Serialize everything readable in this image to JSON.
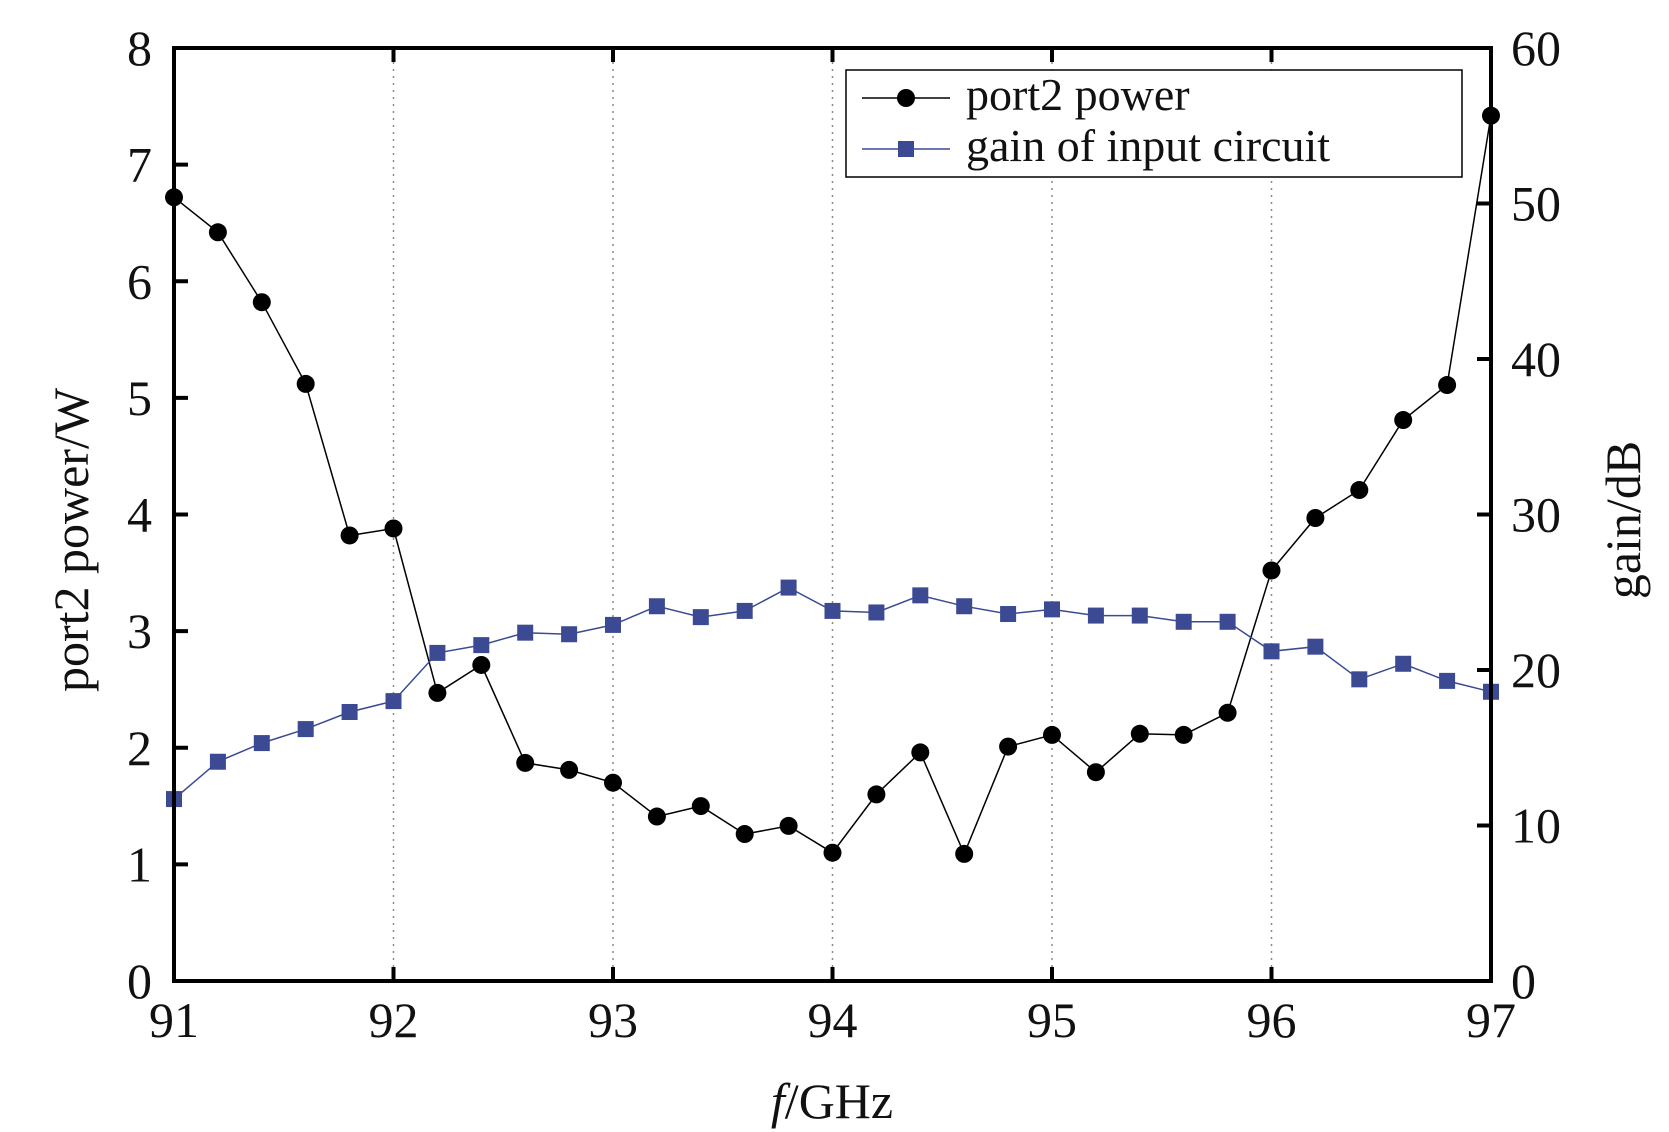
{
  "chart_data": {
    "type": "line",
    "xlabel_italic": "f",
    "xlabel_rest": "/GHz",
    "ylabel": "port2 power/W",
    "y2label": "gain/dB",
    "xlim": [
      91,
      97
    ],
    "ylim": [
      0,
      8
    ],
    "y2lim": [
      0,
      60
    ],
    "xticks": [
      91,
      92,
      93,
      94,
      95,
      96,
      97
    ],
    "yticks": [
      0,
      1,
      2,
      3,
      4,
      5,
      6,
      7,
      8
    ],
    "y2ticks": [
      0,
      10,
      20,
      30,
      40,
      50,
      60
    ],
    "grid": "vertical dotted",
    "legend_position": "top-right",
    "x": [
      91.0,
      91.2,
      91.4,
      91.6,
      91.8,
      92.0,
      92.2,
      92.4,
      92.6,
      92.8,
      93.0,
      93.2,
      93.4,
      93.6,
      93.8,
      94.0,
      94.2,
      94.4,
      94.6,
      94.8,
      95.0,
      95.2,
      95.4,
      95.6,
      95.8,
      96.0,
      96.2,
      96.4,
      96.6,
      96.8,
      97.0
    ],
    "series": [
      {
        "name": "port2 power",
        "axis": "left",
        "marker": "circle",
        "color": "#000000",
        "values": [
          6.72,
          6.42,
          5.82,
          5.12,
          3.82,
          3.88,
          2.47,
          2.71,
          1.87,
          1.81,
          1.7,
          1.41,
          1.5,
          1.26,
          1.33,
          1.1,
          1.6,
          1.96,
          1.09,
          2.01,
          2.11,
          1.79,
          2.12,
          2.11,
          2.3,
          3.52,
          3.97,
          4.21,
          4.81,
          5.11,
          7.42
        ]
      },
      {
        "name": "gain of input circuit",
        "axis": "right",
        "marker": "square",
        "color": "#3b4a93",
        "values": [
          11.7,
          14.1,
          15.3,
          16.2,
          17.3,
          18.0,
          21.1,
          21.6,
          22.4,
          22.3,
          22.9,
          24.1,
          23.4,
          23.8,
          25.3,
          23.8,
          23.7,
          24.8,
          24.1,
          23.6,
          23.9,
          23.5,
          23.5,
          23.1,
          23.1,
          21.2,
          21.5,
          19.4,
          20.4,
          19.3,
          18.6
        ]
      }
    ]
  }
}
